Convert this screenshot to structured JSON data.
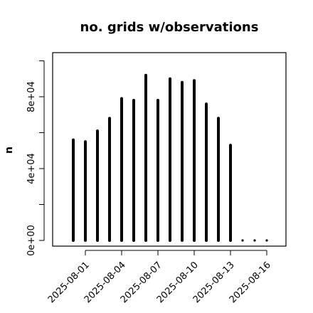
{
  "chart_data": {
    "type": "bar",
    "style": "histogram-spikes",
    "title": "no. grids w/observations",
    "xlabel": "",
    "ylabel": "n",
    "ylim": [
      0,
      100000
    ],
    "x_start": "2025-07-31",
    "y_ticks": [
      0,
      20000,
      40000,
      60000,
      80000,
      100000
    ],
    "y_tick_labels": [
      "0e+00",
      "",
      "4e+04",
      "",
      "8e+04",
      ""
    ],
    "x_tick_labels": [
      {
        "label": "2025-08-01",
        "color": "#000000"
      },
      {
        "label": "2025-08-04",
        "color": "#000000"
      },
      {
        "label": "2025-08-07",
        "color": "#228B22"
      },
      {
        "label": "2025-08-10",
        "color": "#000000"
      },
      {
        "label": "2025-08-13",
        "color": "#000000"
      },
      {
        "label": "2025-08-16",
        "color": "#000000"
      }
    ],
    "x_tick_dates": [
      "2025-08-01",
      "2025-08-04",
      "2025-08-07",
      "2025-08-10",
      "2025-08-13",
      "2025-08-16"
    ],
    "x_dates": [
      "2025-07-31",
      "2025-08-01",
      "2025-08-02",
      "2025-08-03",
      "2025-08-04",
      "2025-08-05",
      "2025-08-06",
      "2025-08-07",
      "2025-08-08",
      "2025-08-09",
      "2025-08-10",
      "2025-08-11",
      "2025-08-12",
      "2025-08-13",
      "2025-08-14",
      "2025-08-15",
      "2025-08-16"
    ],
    "values": [
      56000,
      55000,
      61000,
      68000,
      79000,
      78000,
      92000,
      78000,
      90000,
      88000,
      89000,
      76000,
      68000,
      53000,
      0,
      0,
      0
    ],
    "xlim": [
      "2025-07-30",
      "2025-08-17"
    ],
    "grid": false,
    "legend": "none",
    "colors": {
      "bars": "#000000",
      "axes": "#000000",
      "highlight_tick": "#228B22"
    }
  }
}
